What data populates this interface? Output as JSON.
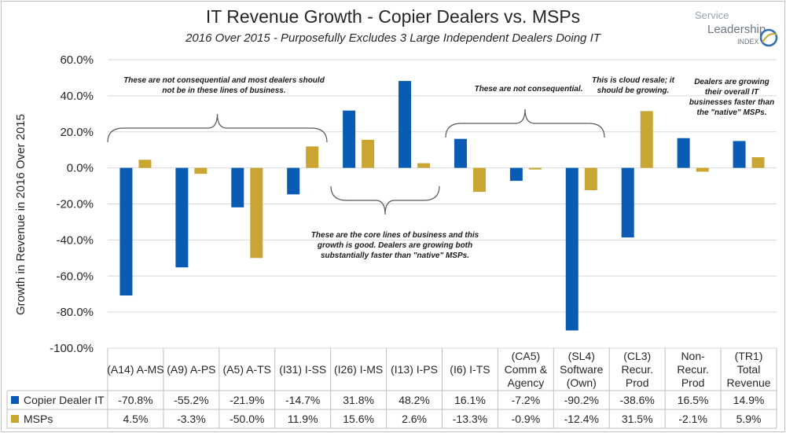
{
  "title": "IT Revenue Growth - Copier Dealers vs. MSPs",
  "subtitle": "2016 Over 2015 - Purposefully Excludes 3 Large Independent Dealers Doing IT",
  "logo": {
    "line1": "Service",
    "line2": "Leadership",
    "line3": "INDEX"
  },
  "colors": {
    "copier": "#0a5bb3",
    "msps": "#c9a632"
  },
  "chart_data": {
    "type": "bar",
    "ylabel": "Growth in Revenue in 2016 Over 2015",
    "ylim": [
      -100,
      60
    ],
    "yticks": [
      -100,
      -80,
      -60,
      -40,
      -20,
      0,
      20,
      40,
      60
    ],
    "ytick_labels": [
      "-100.0%",
      "-80.0%",
      "-60.0%",
      "-40.0%",
      "-20.0%",
      "0.0%",
      "20.0%",
      "40.0%",
      "60.0%"
    ],
    "categories": [
      "(A14) A-MS",
      "(A9) A-PS",
      "(A5) A-TS",
      "(I31) I-SS",
      "(I26) I-MS",
      "(I13) I-PS",
      "(I6) I-TS",
      "(CA5) Comm & Agency",
      "(SL4) Software (Own)",
      "(CL3) Recur. Prod",
      "Non-Recur. Prod",
      "(TR1) Total Revenue"
    ],
    "series": [
      {
        "name": "Copier Dealer IT",
        "values": [
          -70.8,
          -55.2,
          -21.9,
          -14.7,
          31.8,
          48.2,
          16.1,
          -7.2,
          -90.2,
          -38.6,
          16.5,
          14.9
        ],
        "labels": [
          "-70.8%",
          "-55.2%",
          "-21.9%",
          "-14.7%",
          "31.8%",
          "48.2%",
          "16.1%",
          "-7.2%",
          "-90.2%",
          "-38.6%",
          "16.5%",
          "14.9%"
        ]
      },
      {
        "name": "MSPs",
        "values": [
          4.5,
          -3.3,
          -50.0,
          11.9,
          15.6,
          2.6,
          -13.3,
          -0.9,
          -12.4,
          31.5,
          -2.1,
          5.9
        ],
        "labels": [
          "4.5%",
          "-3.3%",
          "-50.0%",
          "11.9%",
          "15.6%",
          "2.6%",
          "-13.3%",
          "-0.9%",
          "-12.4%",
          "31.5%",
          "-2.1%",
          "5.9%"
        ]
      }
    ],
    "grid": true,
    "legend": "data-table"
  },
  "annotations": {
    "not_consequential_1": "These are not consequential and most dealers should not be in these lines of business.",
    "not_consequential_2": "These are not consequential.",
    "cloud_resale": "This is cloud resale; it should be growing.",
    "dealers_growing": "Dealers are growing their overall IT businesses faster than the \"native\" MSPs.",
    "core_lines": "These are the core lines of business and this growth is good. Dealers are growing both substantially faster than \"native\" MSPs."
  }
}
